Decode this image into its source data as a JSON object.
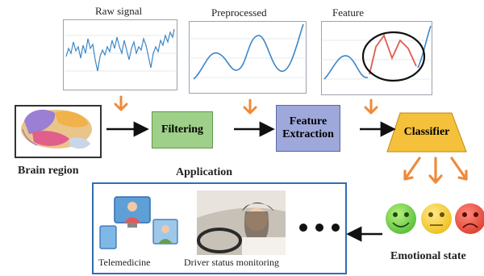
{
  "signals": {
    "raw": "Raw signal",
    "preprocessed": "Preprocessed",
    "feature": "Feature"
  },
  "pipeline": {
    "brain_region": "Brain region",
    "filtering": "Filtering",
    "feature_extraction_line1": "Feature",
    "feature_extraction_line2": "Extraction",
    "classifier": "Classifier",
    "application": "Application",
    "emotional_state": "Emotional state"
  },
  "applications": {
    "telemedicine": "Telemedicine",
    "driver": "Driver status monitoring"
  },
  "colors": {
    "filtering_fill": "#9fd08a",
    "extraction_fill": "#9fa8da",
    "classifier_fill": "#f6c13a",
    "arrow_orange": "#ee8a3c",
    "signal_blue": "#3d86c6",
    "feature_red": "#e15a4f",
    "frame_blue": "#2f6db5"
  }
}
